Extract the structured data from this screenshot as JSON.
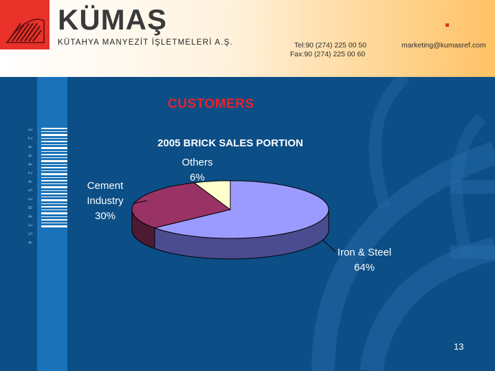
{
  "header": {
    "brand": "KÜMAŞ",
    "company": "KÜTAHYA MANYEZİT İŞLETMELERİ A.Ş.",
    "tel": "Tel:90 (274) 225 00 50",
    "fax": "Fax:90 (274) 225 00 60",
    "email": "marketing@kumasref.com"
  },
  "section_title": "CUSTOMERS",
  "barcode_digits": "3 2 4 4 4 2 4 5 3 0 4 3 5 4",
  "page_number": "13",
  "colors": {
    "accent_red": "#e8222a",
    "background": "#0c4e86"
  },
  "chart_data": {
    "type": "pie",
    "title": "2005 BRICK SALES PORTION",
    "three_d": true,
    "slices": [
      {
        "label": "Iron & Steel",
        "value": 64,
        "value_label": "64%",
        "color": "#9b9bff",
        "side_color": "#4b4b8f"
      },
      {
        "label": "Cement Industry",
        "label_lines": [
          "Cement",
          "Industry"
        ],
        "value": 30,
        "value_label": "30%",
        "color": "#993366",
        "side_color": "#4d1a33"
      },
      {
        "label": "Others",
        "value": 6,
        "value_label": "6%",
        "color": "#ffffcc",
        "side_color": "#8a8a66"
      }
    ]
  }
}
